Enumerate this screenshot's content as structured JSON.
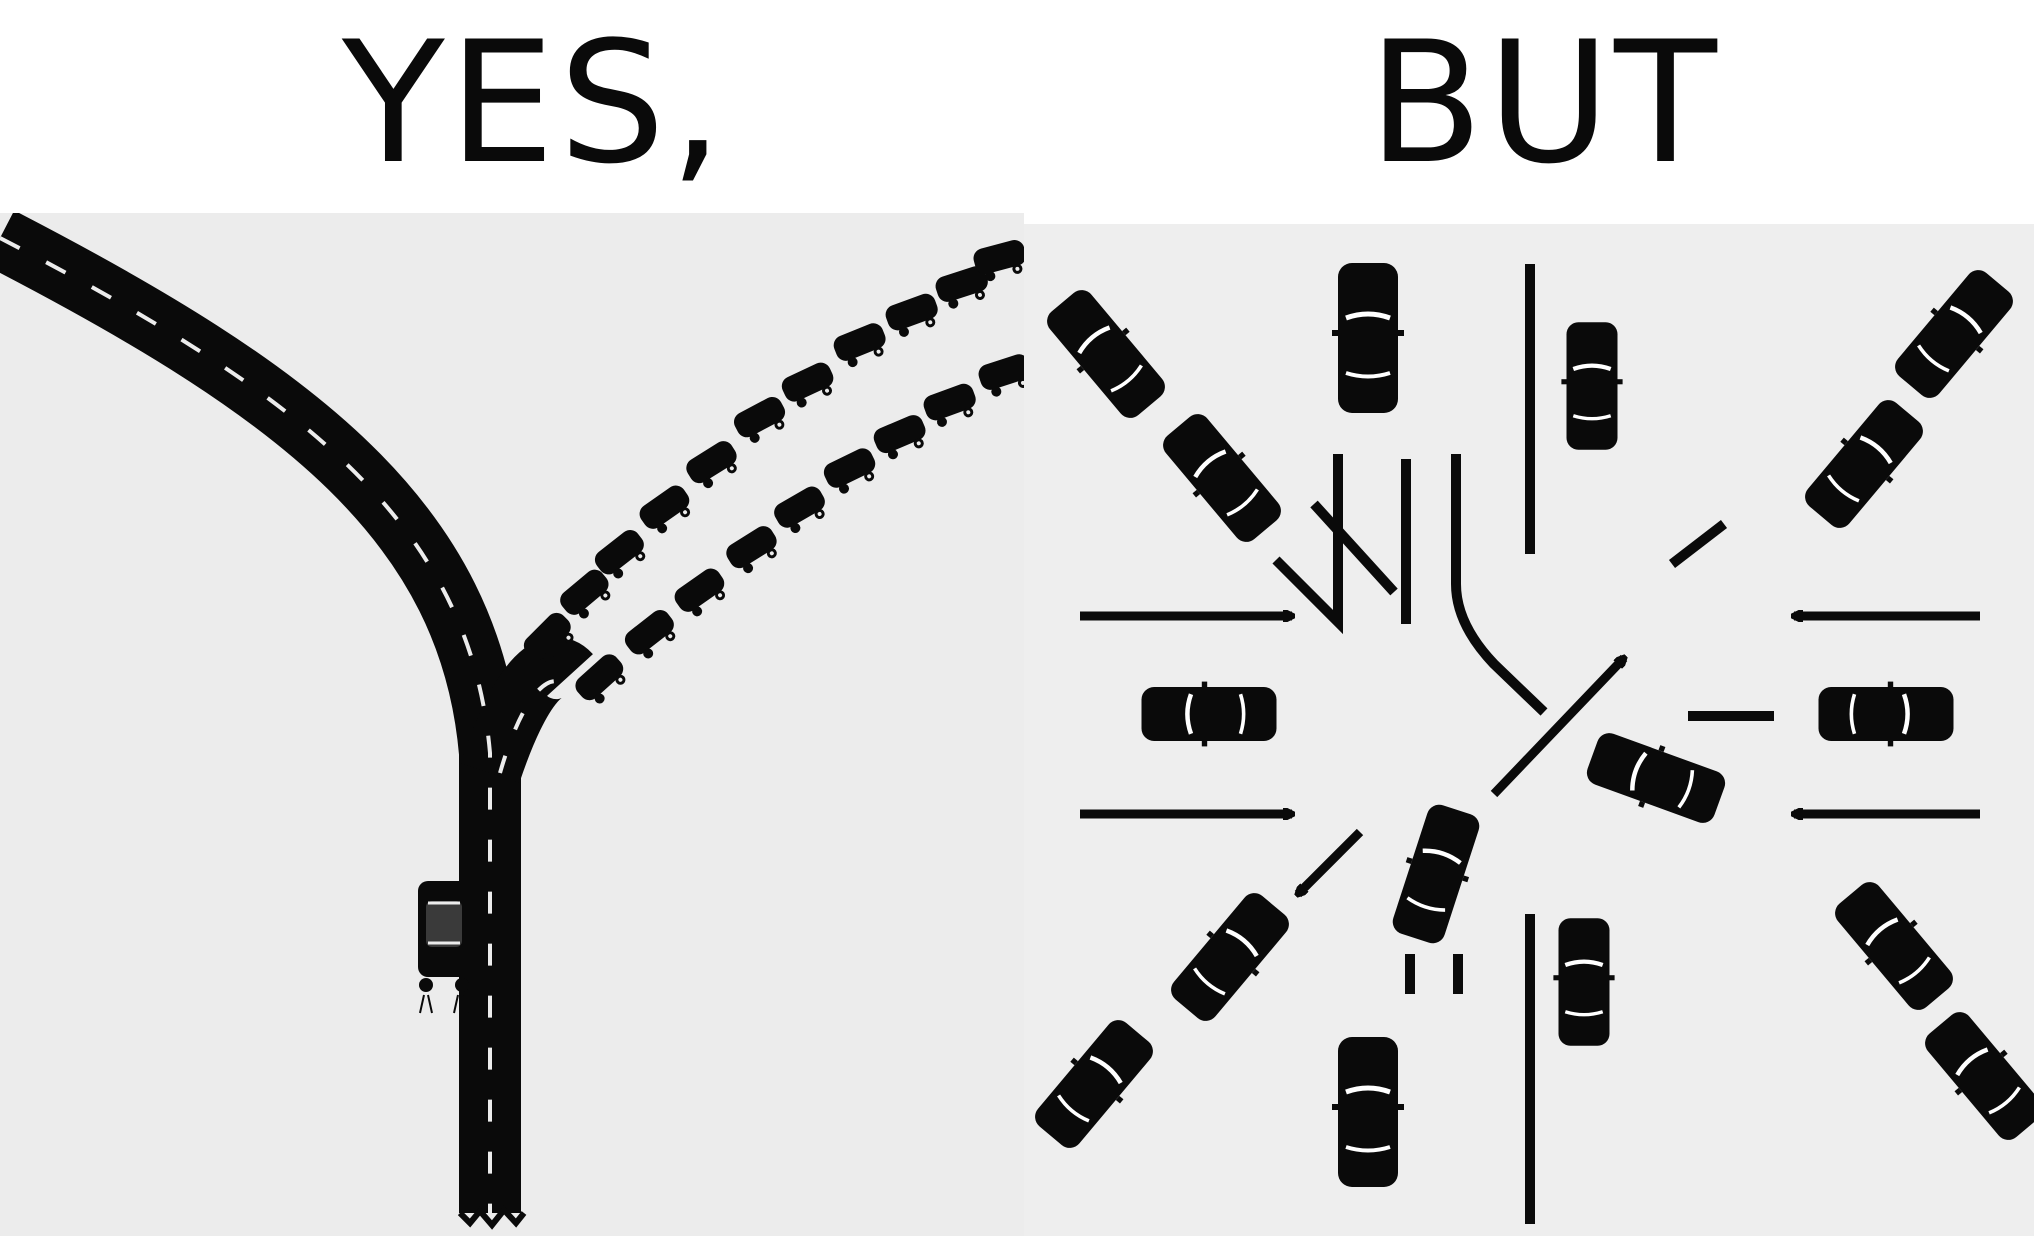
{
  "panels": {
    "left": {
      "heading": "YES,",
      "icons": [
        "y-road-icon",
        "car-icon",
        "traffic-jam-icon"
      ]
    },
    "right": {
      "heading": "BUT",
      "icons": [
        "intersection-icon",
        "car-icon",
        "arrow-icon"
      ]
    }
  },
  "colors": {
    "ink": "#0a0a0a",
    "background": "#ececec",
    "page": "#ffffff"
  }
}
